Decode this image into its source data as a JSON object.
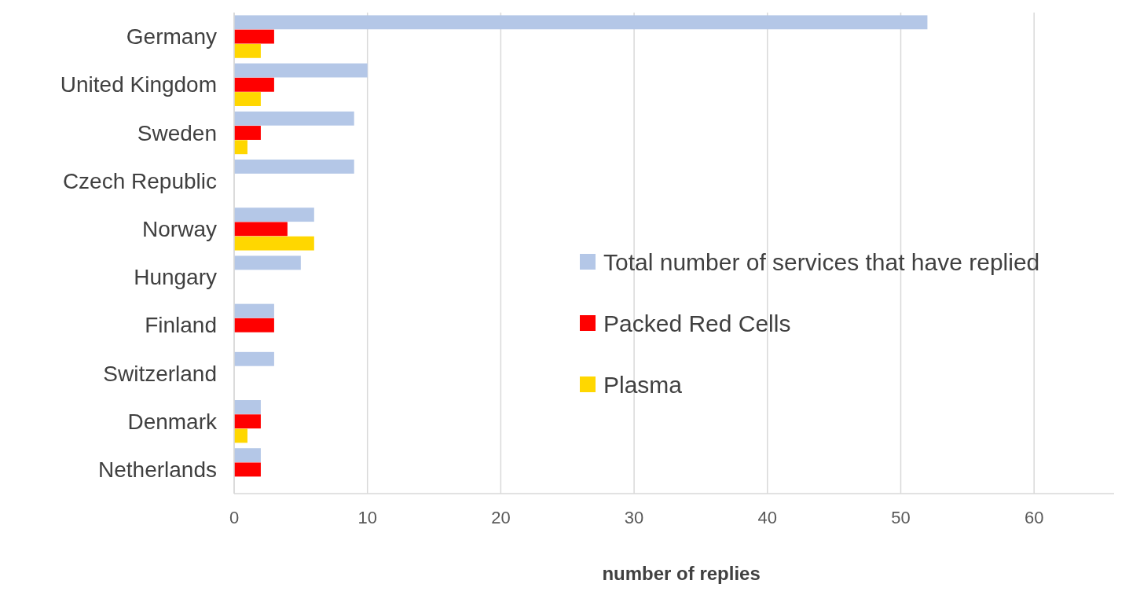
{
  "chart_data": {
    "type": "bar",
    "orientation": "horizontal",
    "xlabel": "number of replies",
    "categories": [
      "Germany",
      "United Kingdom",
      "Sweden",
      "Czech Republic",
      "Norway",
      "Hungary",
      "Finland",
      "Switzerland",
      "Denmark",
      "Netherlands"
    ],
    "series": [
      {
        "name": "Total number of services that have replied",
        "color": "#b4c7e7",
        "values": [
          52,
          10,
          9,
          9,
          6,
          5,
          3,
          3,
          2,
          2
        ]
      },
      {
        "name": "Packed Red Cells",
        "color": "#ff0000",
        "values": [
          3,
          3,
          2,
          null,
          4,
          null,
          3,
          null,
          2,
          2
        ]
      },
      {
        "name": "Plasma",
        "color": "#ffd700",
        "values": [
          2,
          2,
          1,
          null,
          6,
          null,
          null,
          null,
          1,
          null
        ]
      }
    ],
    "xlim": [
      0,
      66
    ],
    "xticks": [
      0,
      10,
      20,
      30,
      40,
      50,
      60
    ],
    "grid": "x",
    "legend": "right"
  }
}
